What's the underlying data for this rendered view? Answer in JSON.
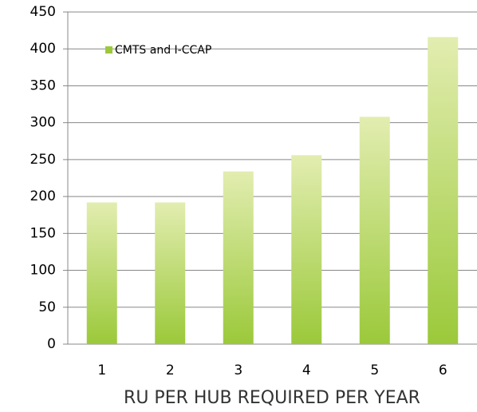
{
  "chart_data": {
    "type": "bar",
    "categories": [
      "1",
      "2",
      "3",
      "4",
      "5",
      "6"
    ],
    "series": [
      {
        "name": "CMTS and I-CCAP",
        "color": "#9bc93a",
        "values": [
          192,
          192,
          234,
          256,
          308,
          416
        ]
      }
    ],
    "ylim": [
      0,
      450
    ],
    "yticks": [
      0,
      50,
      100,
      150,
      200,
      250,
      300,
      350,
      400,
      450
    ],
    "grid": true,
    "legend": "upper left",
    "x_label": "RU PER HUB REQUIRED PER YEAR"
  }
}
